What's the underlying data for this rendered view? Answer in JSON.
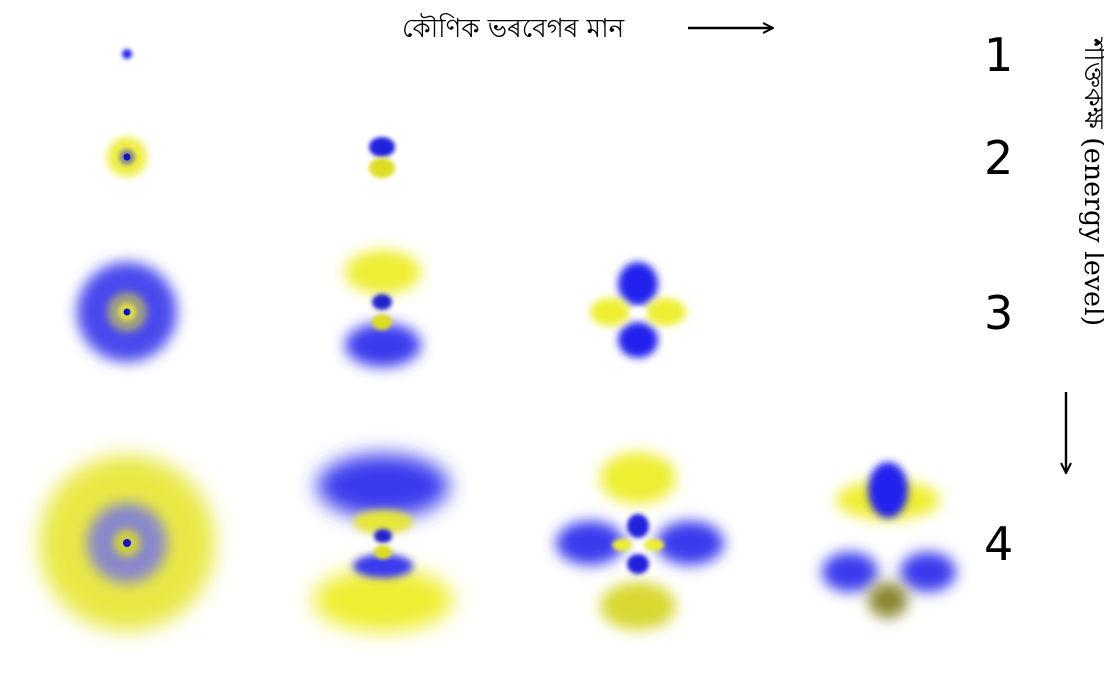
{
  "labels": {
    "angular_momentum": "কৌণিক ভৰবেগৰ মান",
    "energy_level": "শক্তিকক্ষ (energy level)"
  },
  "levels": [
    {
      "n": "1",
      "orbitals": [
        "1s"
      ]
    },
    {
      "n": "2",
      "orbitals": [
        "2s",
        "2p"
      ]
    },
    {
      "n": "3",
      "orbitals": [
        "3s",
        "3p",
        "3d"
      ]
    },
    {
      "n": "4",
      "orbitals": [
        "4s",
        "4p",
        "4d",
        "4f"
      ]
    }
  ],
  "colors": {
    "positive_lobe": "#3333ee",
    "negative_lobe": "#eeee33",
    "arrow": "#000000"
  }
}
